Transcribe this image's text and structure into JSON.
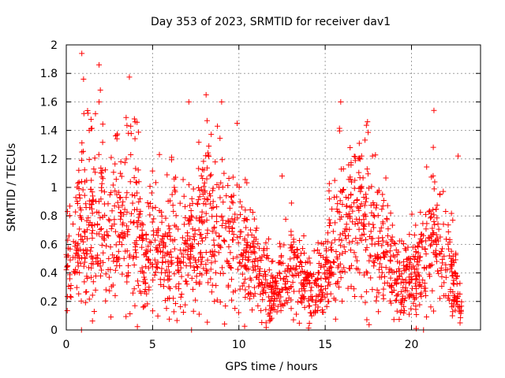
{
  "chart_data": {
    "type": "scatter",
    "title": "Day 353 of 2023, SRMTID for receiver dav1",
    "xlabel": "GPS time / hours",
    "ylabel": "SRMTID / TECUs",
    "xlim": [
      0,
      24
    ],
    "ylim": [
      0,
      2
    ],
    "x_ticks": [
      0,
      5,
      10,
      15,
      20
    ],
    "y_ticks": [
      0,
      0.2,
      0.4,
      0.6,
      0.8,
      1,
      1.2,
      1.4,
      1.6,
      1.8,
      2
    ],
    "x_tick_labels": [
      "0",
      "5",
      "10",
      "15",
      "20"
    ],
    "y_tick_labels": [
      "0",
      "0.2",
      "0.4",
      "0.6",
      "0.8",
      "1",
      "1.2",
      "1.4",
      "1.6",
      "1.8",
      "2"
    ],
    "grid": true,
    "marker": "plus",
    "color": "#ff0000",
    "series_name": "SRMTID",
    "x_range_of_data": [
      0,
      22.9
    ],
    "profile": [
      {
        "x": 0.0,
        "y": 0.42
      },
      {
        "x": 0.5,
        "y": 0.5
      },
      {
        "x": 1.0,
        "y": 0.75
      },
      {
        "x": 1.5,
        "y": 0.7
      },
      {
        "x": 2.0,
        "y": 0.78
      },
      {
        "x": 2.5,
        "y": 0.65
      },
      {
        "x": 3.0,
        "y": 0.75
      },
      {
        "x": 3.5,
        "y": 0.8
      },
      {
        "x": 4.0,
        "y": 0.85
      },
      {
        "x": 4.5,
        "y": 0.45
      },
      {
        "x": 5.0,
        "y": 0.6
      },
      {
        "x": 6.0,
        "y": 0.55
      },
      {
        "x": 7.0,
        "y": 0.6
      },
      {
        "x": 8.0,
        "y": 0.7
      },
      {
        "x": 9.0,
        "y": 0.68
      },
      {
        "x": 10.0,
        "y": 0.55
      },
      {
        "x": 11.0,
        "y": 0.42
      },
      {
        "x": 12.0,
        "y": 0.25
      },
      {
        "x": 13.0,
        "y": 0.42
      },
      {
        "x": 14.0,
        "y": 0.32
      },
      {
        "x": 14.8,
        "y": 0.28
      },
      {
        "x": 15.5,
        "y": 0.65
      },
      {
        "x": 16.5,
        "y": 0.75
      },
      {
        "x": 17.5,
        "y": 0.7
      },
      {
        "x": 18.5,
        "y": 0.55
      },
      {
        "x": 19.5,
        "y": 0.3
      },
      {
        "x": 20.5,
        "y": 0.45
      },
      {
        "x": 21.2,
        "y": 0.65
      },
      {
        "x": 22.0,
        "y": 0.55
      },
      {
        "x": 22.9,
        "y": 0.15
      }
    ],
    "peaks": [
      {
        "x": 0.9,
        "y": 1.94
      },
      {
        "x": 1.0,
        "y": 1.76
      },
      {
        "x": 1.9,
        "y": 1.86
      },
      {
        "x": 1.9,
        "y": 1.6
      },
      {
        "x": 3.6,
        "y": 1.38
      },
      {
        "x": 7.1,
        "y": 1.6
      },
      {
        "x": 8.1,
        "y": 1.65
      },
      {
        "x": 9.0,
        "y": 1.6
      },
      {
        "x": 9.9,
        "y": 1.45
      },
      {
        "x": 12.5,
        "y": 1.08
      },
      {
        "x": 15.9,
        "y": 1.6
      },
      {
        "x": 21.3,
        "y": 1.54
      },
      {
        "x": 22.7,
        "y": 1.22
      }
    ]
  }
}
